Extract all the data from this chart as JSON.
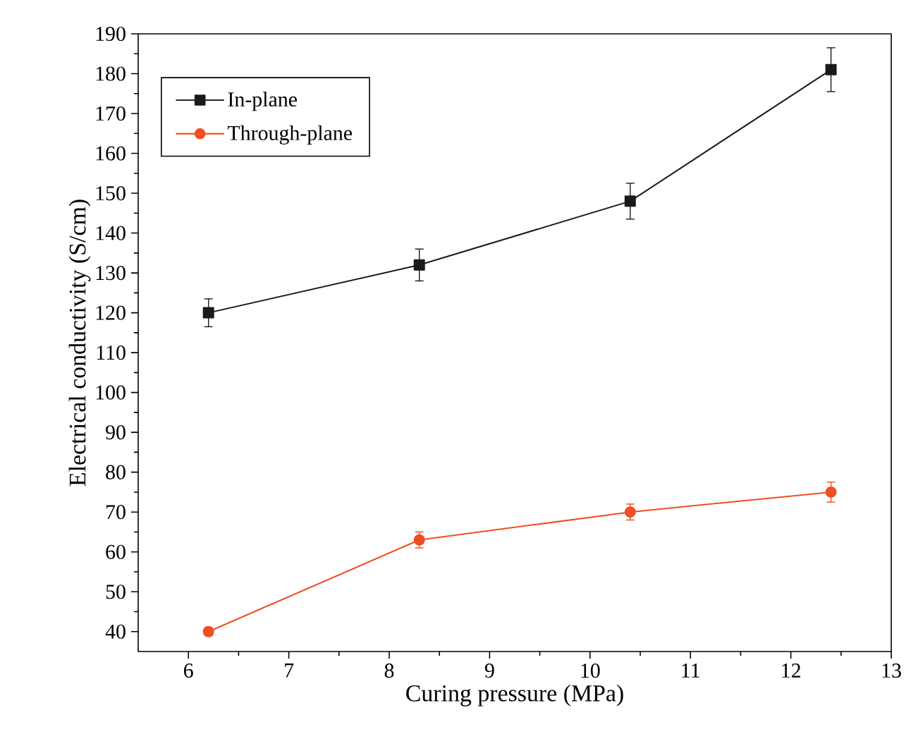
{
  "chart_data": {
    "type": "line",
    "xlabel": "Curing pressure (MPa)",
    "ylabel": "Electrical conductivity (S/cm)",
    "x": [
      6.2,
      8.3,
      10.4,
      12.4
    ],
    "series": [
      {
        "name": "In-plane",
        "color": "#1a1a1a",
        "marker": "square",
        "values": [
          120,
          132,
          148,
          181
        ],
        "errors": [
          3.5,
          4,
          4.5,
          5.5
        ]
      },
      {
        "name": "Through-plane",
        "color": "#f04e23",
        "marker": "circle",
        "values": [
          40,
          63,
          70,
          75
        ],
        "errors": [
          1,
          2,
          2,
          2.5
        ]
      }
    ],
    "xlim": [
      5.5,
      13
    ],
    "xticks": [
      6,
      7,
      8,
      9,
      10,
      11,
      12,
      13
    ],
    "ylim": [
      35,
      190
    ],
    "yticks": [
      40,
      50,
      60,
      70,
      80,
      90,
      100,
      110,
      120,
      130,
      140,
      150,
      160,
      170,
      180,
      190
    ],
    "grid": false,
    "legend": "top left",
    "line_style": "solid"
  }
}
